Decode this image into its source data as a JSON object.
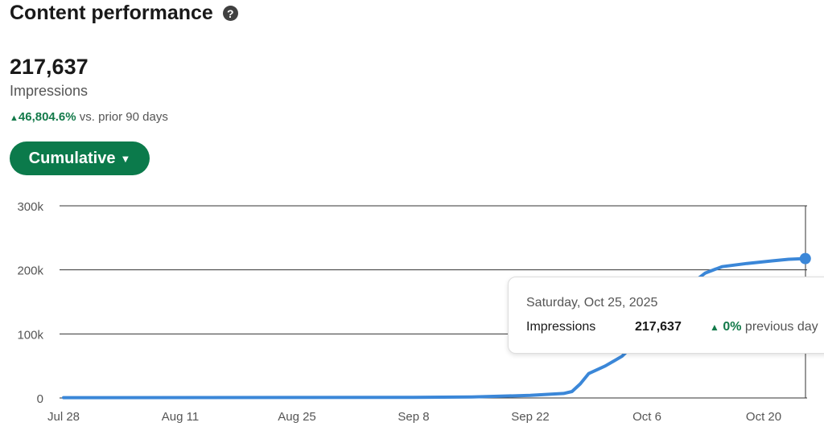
{
  "header": {
    "title": "Content performance",
    "help_icon": "question-circle-icon"
  },
  "summary": {
    "value": "217,637",
    "label": "Impressions",
    "change_arrow": "▲",
    "change_pct": "46,804.6%",
    "change_text": "vs. prior 90 days"
  },
  "mode_button": {
    "label": "Cumulative",
    "icon": "caret-down-icon"
  },
  "tooltip": {
    "date": "Saturday, Oct 25, 2025",
    "metric": "Impressions",
    "value": "217,637",
    "arrow": "▲",
    "change": "0%",
    "change_text": "previous day"
  },
  "colors": {
    "accent": "#0b7a4b",
    "line": "#3b87d8",
    "positive": "#137a4a"
  },
  "chart_data": {
    "type": "line",
    "title": "",
    "xlabel": "",
    "ylabel": "",
    "x_ticks": [
      "Jul 28",
      "Aug 11",
      "Aug 25",
      "Sep 8",
      "Sep 22",
      "Oct 6",
      "Oct 20"
    ],
    "y_ticks": [
      "0",
      "100k",
      "200k",
      "300k"
    ],
    "ylim": [
      0,
      300000
    ],
    "xlim": [
      "2025-07-28",
      "2025-10-25"
    ],
    "grid": true,
    "series": [
      {
        "name": "Impressions",
        "points": [
          [
            "2025-07-28",
            500
          ],
          [
            "2025-08-25",
            800
          ],
          [
            "2025-09-08",
            1000
          ],
          [
            "2025-09-15",
            1500
          ],
          [
            "2025-09-22",
            4000
          ],
          [
            "2025-09-26",
            7000
          ],
          [
            "2025-09-27",
            10000
          ],
          [
            "2025-09-28",
            22000
          ],
          [
            "2025-09-29",
            38000
          ],
          [
            "2025-10-01",
            50000
          ],
          [
            "2025-10-03",
            65000
          ],
          [
            "2025-10-05",
            90000
          ],
          [
            "2025-10-07",
            120000
          ],
          [
            "2025-10-09",
            150000
          ],
          [
            "2025-10-11",
            175000
          ],
          [
            "2025-10-13",
            195000
          ],
          [
            "2025-10-15",
            205000
          ],
          [
            "2025-10-18",
            210000
          ],
          [
            "2025-10-21",
            214000
          ],
          [
            "2025-10-23",
            216500
          ],
          [
            "2025-10-25",
            217637
          ]
        ]
      }
    ]
  }
}
